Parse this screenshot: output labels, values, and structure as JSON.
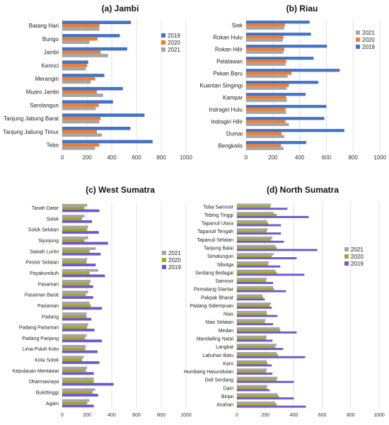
{
  "chart_data": [
    {
      "type": "bar",
      "orientation": "horizontal",
      "title": "(a) Jambi",
      "categories": [
        "Batang Hari",
        "Bungo",
        "Jambi",
        "Kerinci",
        "Merangin",
        "Muaro Jambi",
        "Sarolangun",
        "Tanjung Jabung Barat",
        "Tanjung Jabung Timur",
        "Tebo"
      ],
      "series": [
        {
          "name": "2019",
          "color": "#4472C4",
          "values": [
            555,
            465,
            525,
            210,
            340,
            490,
            410,
            665,
            550,
            730
          ]
        },
        {
          "name": "2020",
          "color": "#ED7D31",
          "values": [
            300,
            285,
            310,
            200,
            265,
            280,
            295,
            310,
            280,
            300
          ]
        },
        {
          "name": "2021",
          "color": "#A5A5A5",
          "values": [
            300,
            220,
            370,
            190,
            230,
            330,
            270,
            300,
            320,
            265
          ]
        }
      ],
      "xlim": [
        0,
        1000
      ],
      "xticks": [
        "0",
        "200",
        "400",
        "600",
        "800",
        "1000"
      ],
      "legend": "right",
      "legend_order": [
        "2019",
        "2020",
        "2021"
      ],
      "grid": true
    },
    {
      "type": "bar",
      "orientation": "horizontal",
      "title": "(b) Riau",
      "categories": [
        "Siak",
        "Rokan Hulu",
        "Rokan Hilir",
        "Pelalawan",
        "Pekan Baru",
        "Kuantan Singingi",
        "Kampar",
        "Indragiri Hulu",
        "Indragiri Hilir",
        "Dumai",
        "Bengkalis"
      ],
      "series": [
        {
          "name": "2019",
          "color": "#4472C4",
          "values": [
            475,
            485,
            605,
            505,
            700,
            540,
            445,
            600,
            585,
            735,
            450
          ]
        },
        {
          "name": "2020",
          "color": "#ED7D31",
          "values": [
            290,
            280,
            285,
            300,
            340,
            320,
            300,
            295,
            295,
            265,
            260
          ]
        },
        {
          "name": "2021",
          "color": "#A5A5A5",
          "values": [
            285,
            275,
            280,
            295,
            310,
            305,
            305,
            300,
            320,
            285,
            280
          ]
        }
      ],
      "xlim": [
        0,
        1000
      ],
      "xticks": [
        "0",
        "200",
        "400",
        "600",
        "800",
        "1000"
      ],
      "legend": "right",
      "legend_order": [
        "2021",
        "2020",
        "2019"
      ],
      "grid": true
    },
    {
      "type": "bar",
      "orientation": "horizontal",
      "title": "(c) West Sumatra",
      "categories": [
        "Tanah Datar",
        "Solok",
        "Solok Selatan",
        "Sijunjung",
        "Sawah Lunto",
        "Pesisir Selatan",
        "Payakumbuh",
        "Pasaman",
        "Pasaman Barat",
        "Pariaman",
        "Padang",
        "Padang Pariaman",
        "Padang Panjang",
        "Lima Puluh Koto",
        "Kota Solok",
        "Kepulauan Mentawai",
        "Dharmasraya",
        "Bukittinggi",
        "Agam"
      ],
      "series": [
        {
          "name": "2021",
          "color": "#A5A5A5",
          "values": [
            200,
            180,
            210,
            210,
            270,
            200,
            290,
            230,
            210,
            220,
            195,
            210,
            195,
            190,
            175,
            200,
            255,
            265,
            220
          ]
        },
        {
          "name": "2020",
          "color": "#A5A52A",
          "values": [
            180,
            160,
            200,
            180,
            220,
            195,
            220,
            220,
            190,
            230,
            195,
            200,
            185,
            185,
            160,
            190,
            255,
            245,
            200
          ]
        },
        {
          "name": "2019",
          "color": "#6A5ACD",
          "values": [
            300,
            240,
            295,
            370,
            310,
            270,
            345,
            250,
            250,
            320,
            235,
            260,
            320,
            285,
            300,
            255,
            415,
            290,
            255
          ]
        }
      ],
      "xlim": [
        0,
        1000
      ],
      "xticks": [
        "0",
        "200",
        "400",
        "600",
        "800",
        "1000"
      ],
      "legend": "right",
      "legend_order": [
        "2021",
        "2020",
        "2019"
      ],
      "grid": true
    },
    {
      "type": "bar",
      "orientation": "horizontal",
      "title": "(d) North Sumatra",
      "categories": [
        "Toba Samosir",
        "Tebing Tinggi",
        "Tapanuli Utara",
        "Tapanuli Tengah",
        "Tapanuli Selatan",
        "Tanjung Balai",
        "Simalungun",
        "Sibolga",
        "Serdang Bedagai",
        "Samosir",
        "Pematang Siantar",
        "Pakpak Bharat",
        "Padang Sidempuan",
        "Nias",
        "Nias Selatan",
        "Medan",
        "Mandailing Natal",
        "Langkat",
        "Labuhan Batu",
        "Karo",
        "Humbang Hasundutan",
        "Deli Serdang",
        "Dairi",
        "Binjai",
        "Asahan"
      ],
      "series": [
        {
          "name": "2021",
          "color": "#A5A5A5",
          "values": [
            240,
            260,
            210,
            215,
            250,
            270,
            260,
            225,
            270,
            210,
            255,
            180,
            240,
            210,
            200,
            300,
            210,
            280,
            280,
            210,
            210,
            285,
            215,
            285,
            270
          ]
        },
        {
          "name": "2020",
          "color": "#A5A52A",
          "values": [
            235,
            280,
            220,
            210,
            240,
            280,
            245,
            220,
            280,
            205,
            260,
            185,
            230,
            210,
            195,
            305,
            205,
            270,
            290,
            215,
            205,
            280,
            210,
            295,
            280
          ]
        },
        {
          "name": "2019",
          "color": "#6A5ACD",
          "values": [
            355,
            505,
            310,
            310,
            330,
            565,
            420,
            305,
            475,
            255,
            345,
            195,
            245,
            285,
            255,
            420,
            250,
            325,
            480,
            245,
            250,
            400,
            230,
            400,
            485
          ]
        }
      ],
      "xlim": [
        0,
        1000
      ],
      "xticks": [
        "0",
        "200",
        "400",
        "600",
        "800",
        "1000"
      ],
      "legend": "right",
      "legend_order": [
        "2021",
        "2020",
        "2019"
      ],
      "grid": true
    }
  ]
}
